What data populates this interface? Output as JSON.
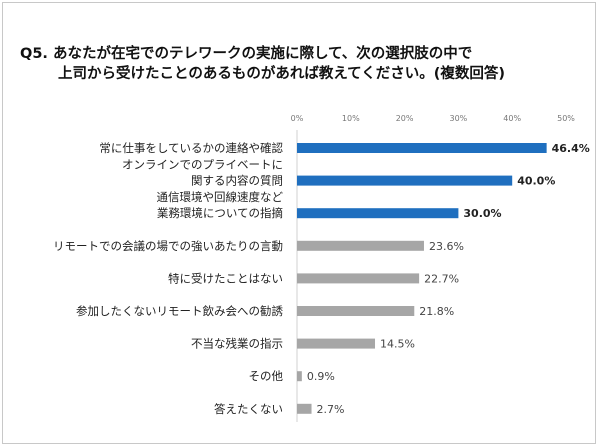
{
  "chart_data": {
    "type": "bar",
    "orientation": "horizontal",
    "title_lines": [
      "Q5. あなたが在宅でのテレワークの実施に際して、次の選択肢の中で",
      "上司から受けたことのあるものがあれば教えてください。(複数回答)"
    ],
    "categories": [
      [
        "常に仕事をしているかの連絡や確認"
      ],
      [
        "オンラインでのプライベートに",
        "関する内容の質問"
      ],
      [
        "通信環境や回線速度など",
        "業務環境についての指摘"
      ],
      [
        "リモートでの会議の場での強いあたりの言動"
      ],
      [
        "特に受けたことはない"
      ],
      [
        "参加したくないリモート飲み会への勧誘"
      ],
      [
        "不当な残業の指示"
      ],
      [
        "その他"
      ],
      [
        "答えたくない"
      ]
    ],
    "values": [
      46.4,
      40.0,
      30.0,
      23.6,
      22.7,
      21.8,
      14.5,
      0.9,
      2.7
    ],
    "value_labels": [
      "46.4%",
      "40.0%",
      "30.0%",
      "23.6%",
      "22.7%",
      "21.8%",
      "14.5%",
      "0.9%",
      "2.7%"
    ],
    "highlighted": [
      true,
      true,
      true,
      false,
      false,
      false,
      false,
      false,
      false
    ],
    "xlim": [
      0,
      50
    ],
    "x_ticks": [
      "0%",
      "10%",
      "20%",
      "30%",
      "40%",
      "50%"
    ],
    "grid": false,
    "colors": {
      "highlight": "#1f6fbf",
      "normal": "#a6a6a6"
    }
  }
}
